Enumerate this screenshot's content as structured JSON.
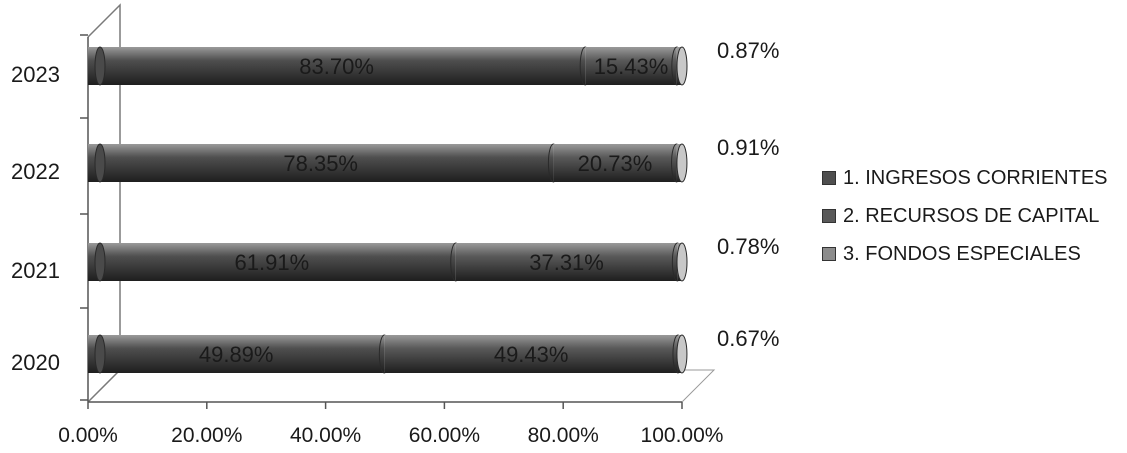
{
  "chart_data": {
    "type": "bar",
    "orientation": "horizontal",
    "stacked": true,
    "percent_stacked": true,
    "categories": [
      "2020",
      "2021",
      "2022",
      "2023"
    ],
    "series": [
      {
        "name": "1. INGRESOS CORRIENTES",
        "values": [
          49.89,
          61.91,
          78.35,
          83.7
        ],
        "labels": [
          "49.89%",
          "61.91%",
          "78.35%",
          "83.70%"
        ],
        "color": "#4f4f4f"
      },
      {
        "name": "2. RECURSOS DE CAPITAL",
        "values": [
          49.43,
          37.31,
          20.73,
          15.43
        ],
        "labels": [
          "49.43%",
          "37.31%",
          "20.73%",
          "15.43%"
        ],
        "color": "#595959"
      },
      {
        "name": "3. FONDOS ESPECIALES",
        "values": [
          0.67,
          0.78,
          0.91,
          0.87
        ],
        "labels": [
          "0.67%",
          "0.78%",
          "0.91%",
          "0.87%"
        ],
        "color": "#8c8c8c"
      }
    ],
    "x_ticks": [
      "0.00%",
      "20.00%",
      "40.00%",
      "60.00%",
      "80.00%",
      "100.00%"
    ],
    "xlim": [
      0,
      100
    ],
    "grid": false,
    "legend_position": "right"
  }
}
